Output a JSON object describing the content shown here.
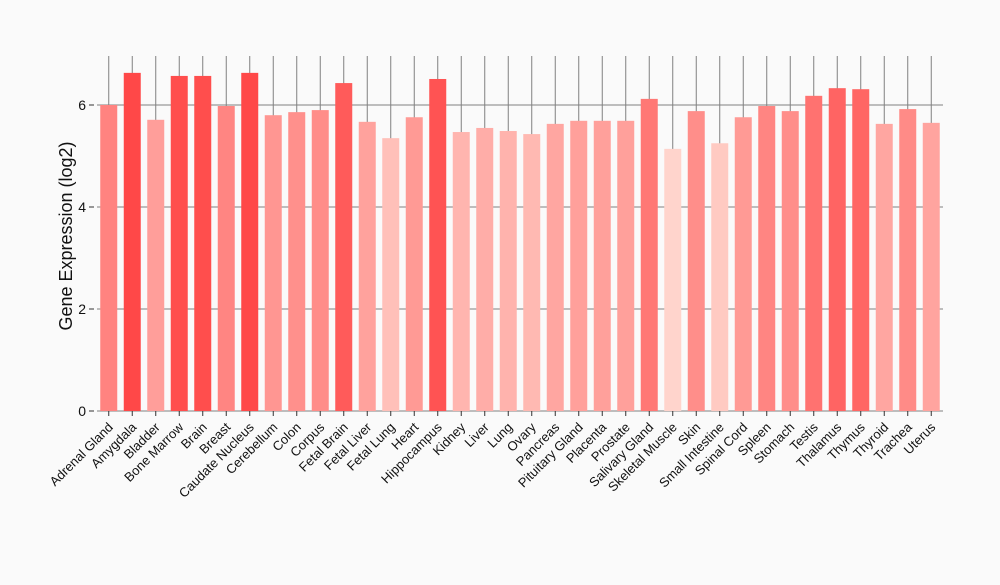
{
  "chart_data": {
    "type": "bar",
    "title": "",
    "xlabel": "",
    "ylabel": "Gene Expression (log2)",
    "ylim": [
      0,
      7
    ],
    "yticks": [
      0,
      2,
      4,
      6
    ],
    "grid": true,
    "categories": [
      "Adrenal Gland",
      "Amygdala",
      "Bladder",
      "Bone Marrow",
      "Brain",
      "Breast",
      "Caudate Nucleus",
      "Cerebellum",
      "Colon",
      "Corpus",
      "Fetal Brain",
      "Fetal Liver",
      "Fetal Lung",
      "Heart",
      "Hippocampus",
      "Kidney",
      "Liver",
      "Lung",
      "Ovary",
      "Pancreas",
      "Pituitary Gland",
      "Placenta",
      "Prostate",
      "Salivary Gland",
      "Skeletal Muscle",
      "Skin",
      "Small Intestine",
      "Spinal Cord",
      "Spleen",
      "Stomach",
      "Testis",
      "Thalamus",
      "Thymus",
      "Thyroid",
      "Trachea",
      "Uterus"
    ],
    "values": [
      6.0,
      6.63,
      5.71,
      6.57,
      6.57,
      5.98,
      6.63,
      5.8,
      5.86,
      5.9,
      6.43,
      5.67,
      5.35,
      5.76,
      6.51,
      5.47,
      5.55,
      5.49,
      5.43,
      5.63,
      5.69,
      5.69,
      5.69,
      6.12,
      5.14,
      5.88,
      5.25,
      5.76,
      5.98,
      5.88,
      6.18,
      6.33,
      6.31,
      5.63,
      5.92,
      5.65
    ],
    "color_low": "#ffd4cc",
    "color_high": "#ff4848"
  }
}
